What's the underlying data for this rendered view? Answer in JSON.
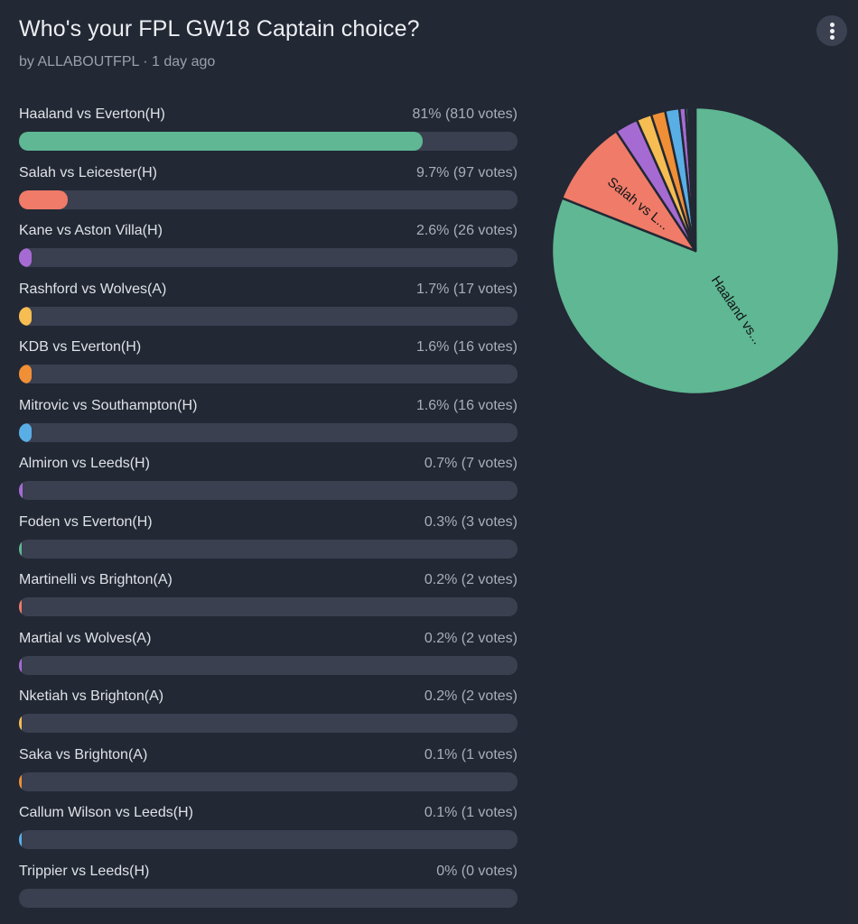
{
  "poll": {
    "title": "Who's your FPL GW18 Captain choice?",
    "subtitle": "by ALLABOUTFPL · 1 day ago",
    "menu_icon": "more-vertical-icon"
  },
  "options": [
    {
      "label": "Haaland vs Everton(H)",
      "value": "81% (810 votes)",
      "pct": 81,
      "votes": 810,
      "color": "#5fb793"
    },
    {
      "label": "Salah vs Leicester(H)",
      "value": "9.7% (97 votes)",
      "pct": 9.7,
      "votes": 97,
      "color": "#ef7b68"
    },
    {
      "label": "Kane vs Aston Villa(H)",
      "value": "2.6% (26 votes)",
      "pct": 2.6,
      "votes": 26,
      "color": "#a66bd3"
    },
    {
      "label": "Rashford vs Wolves(A)",
      "value": "1.7% (17 votes)",
      "pct": 1.7,
      "votes": 17,
      "color": "#f5bd52"
    },
    {
      "label": "KDB vs Everton(H)",
      "value": "1.6% (16 votes)",
      "pct": 1.6,
      "votes": 16,
      "color": "#f08f35"
    },
    {
      "label": "Mitrovic vs Southampton(H)",
      "value": "1.6% (16 votes)",
      "pct": 1.6,
      "votes": 16,
      "color": "#5aaee6"
    },
    {
      "label": "Almiron vs Leeds(H)",
      "value": "0.7% (7 votes)",
      "pct": 0.7,
      "votes": 7,
      "color": "#a66bd3"
    },
    {
      "label": "Foden vs Everton(H)",
      "value": "0.3% (3 votes)",
      "pct": 0.3,
      "votes": 3,
      "color": "#5fb793"
    },
    {
      "label": "Martinelli vs Brighton(A)",
      "value": "0.2% (2 votes)",
      "pct": 0.2,
      "votes": 2,
      "color": "#ef7b68"
    },
    {
      "label": "Martial vs Wolves(A)",
      "value": "0.2% (2 votes)",
      "pct": 0.2,
      "votes": 2,
      "color": "#a66bd3"
    },
    {
      "label": "Nketiah vs Brighton(A)",
      "value": "0.2% (2 votes)",
      "pct": 0.2,
      "votes": 2,
      "color": "#f5bd52"
    },
    {
      "label": "Saka vs Brighton(A)",
      "value": "0.1% (1 votes)",
      "pct": 0.1,
      "votes": 1,
      "color": "#f08f35"
    },
    {
      "label": "Callum Wilson vs Leeds(H)",
      "value": "0.1% (1 votes)",
      "pct": 0.1,
      "votes": 1,
      "color": "#5aaee6"
    },
    {
      "label": "Trippier vs Leeds(H)",
      "value": "0% (0 votes)",
      "pct": 0,
      "votes": 0,
      "color": "#a66bd3"
    }
  ],
  "pie_labels": {
    "haaland": "Haaland vs...",
    "salah": "Salah vs L..."
  },
  "colors": {
    "background": "#222834",
    "track": "#3a4050",
    "menu_button": "#3b4150",
    "slice_border": "#222834"
  },
  "chart_data": [
    {
      "type": "bar",
      "orientation": "horizontal",
      "title": "Who's your FPL GW18 Captain choice?",
      "categories": [
        "Haaland vs Everton(H)",
        "Salah vs Leicester(H)",
        "Kane vs Aston Villa(H)",
        "Rashford vs Wolves(A)",
        "KDB vs Everton(H)",
        "Mitrovic vs Southampton(H)",
        "Almiron vs Leeds(H)",
        "Foden vs Everton(H)",
        "Martinelli vs Brighton(A)",
        "Martial vs Wolves(A)",
        "Nketiah vs Brighton(A)",
        "Saka vs Brighton(A)",
        "Callum Wilson vs Leeds(H)",
        "Trippier vs Leeds(H)"
      ],
      "series": [
        {
          "name": "Percent",
          "values": [
            81,
            9.7,
            2.6,
            1.7,
            1.6,
            1.6,
            0.7,
            0.3,
            0.2,
            0.2,
            0.2,
            0.1,
            0.1,
            0
          ]
        },
        {
          "name": "Votes",
          "values": [
            810,
            97,
            26,
            17,
            16,
            16,
            7,
            3,
            2,
            2,
            2,
            1,
            1,
            0
          ]
        }
      ],
      "xlim": [
        0,
        100
      ]
    },
    {
      "type": "pie",
      "categories": [
        "Haaland vs Everton(H)",
        "Salah vs Leicester(H)",
        "Kane vs Aston Villa(H)",
        "Rashford vs Wolves(A)",
        "KDB vs Everton(H)",
        "Mitrovic vs Southampton(H)",
        "Almiron vs Leeds(H)",
        "Foden vs Everton(H)",
        "Martinelli vs Brighton(A)",
        "Martial vs Wolves(A)",
        "Nketiah vs Brighton(A)",
        "Saka vs Brighton(A)",
        "Callum Wilson vs Leeds(H)",
        "Trippier vs Leeds(H)"
      ],
      "values": [
        810,
        97,
        26,
        17,
        16,
        16,
        7,
        3,
        2,
        2,
        2,
        1,
        1,
        0
      ],
      "slice_labels": [
        "Haaland vs...",
        "Salah vs L..."
      ],
      "start_angle": "12 o'clock",
      "direction": "clockwise"
    }
  ]
}
